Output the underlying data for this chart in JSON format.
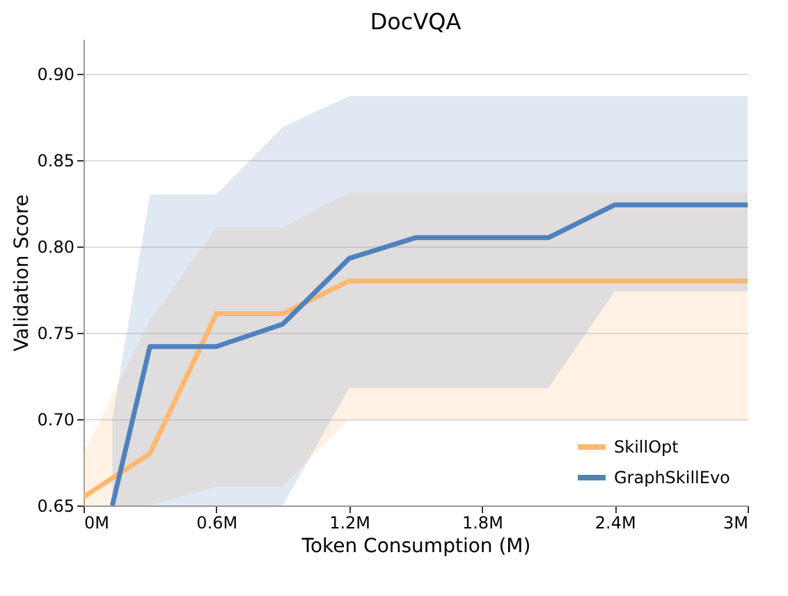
{
  "chart_data": {
    "type": "line",
    "title": "DocVQA",
    "xlabel": "Token Consumption (M)",
    "ylabel": "Validation Score",
    "xlim": [
      0,
      3
    ],
    "xticks": [
      {
        "value": 0,
        "label": "0M"
      },
      {
        "value": 0.6,
        "label": "0.6M"
      },
      {
        "value": 1.2,
        "label": "1.2M"
      },
      {
        "value": 1.8,
        "label": "1.8M"
      },
      {
        "value": 2.4,
        "label": "2.4M"
      },
      {
        "value": 3,
        "label": "3M"
      }
    ],
    "ylim": [
      0.65,
      0.92
    ],
    "yticks": [
      0.65,
      {
        "value": 0.7,
        "label": "0.70"
      },
      0.75,
      {
        "value": 0.8,
        "label": "0.80"
      },
      0.85,
      {
        "value": 0.9,
        "label": "0.90"
      }
    ],
    "grid": "y",
    "legend": "bottom right",
    "line_style": "solid",
    "series": [
      {
        "name": "SkillOpt",
        "color": "#ffb870",
        "x": [
          0,
          0.3,
          0.6,
          0.9,
          1.2,
          1.5,
          1.8,
          2.1,
          2.4,
          2.7,
          3
        ],
        "values": [
          0.655,
          0.68,
          0.761,
          0.761,
          0.78,
          0.78,
          0.78,
          0.78,
          0.78,
          0.78,
          0.78
        ],
        "lower": [
          0.65,
          0.65,
          0.661,
          0.661,
          0.7,
          0.7,
          0.7,
          0.7,
          0.7,
          0.7,
          0.7
        ],
        "upper": [
          0.68,
          0.757,
          0.811,
          0.811,
          0.831,
          0.831,
          0.831,
          0.831,
          0.831,
          0.831,
          0.831
        ]
      },
      {
        "name": "GraphSkillEvo",
        "color": "#4f81bd",
        "x": [
          0.13,
          0.3,
          0.6,
          0.9,
          1.2,
          1.5,
          1.8,
          2.1,
          2.4,
          2.7,
          3
        ],
        "values": [
          0.65,
          0.742,
          0.742,
          0.755,
          0.793,
          0.805,
          0.805,
          0.805,
          0.824,
          0.824,
          0.824
        ],
        "lower": [
          0.65,
          0.65,
          0.65,
          0.65,
          0.718,
          0.718,
          0.718,
          0.718,
          0.774,
          0.774,
          0.774
        ],
        "upper": [
          0.7,
          0.83,
          0.83,
          0.869,
          0.887,
          0.887,
          0.887,
          0.887,
          0.887,
          0.887,
          0.887
        ]
      }
    ]
  }
}
